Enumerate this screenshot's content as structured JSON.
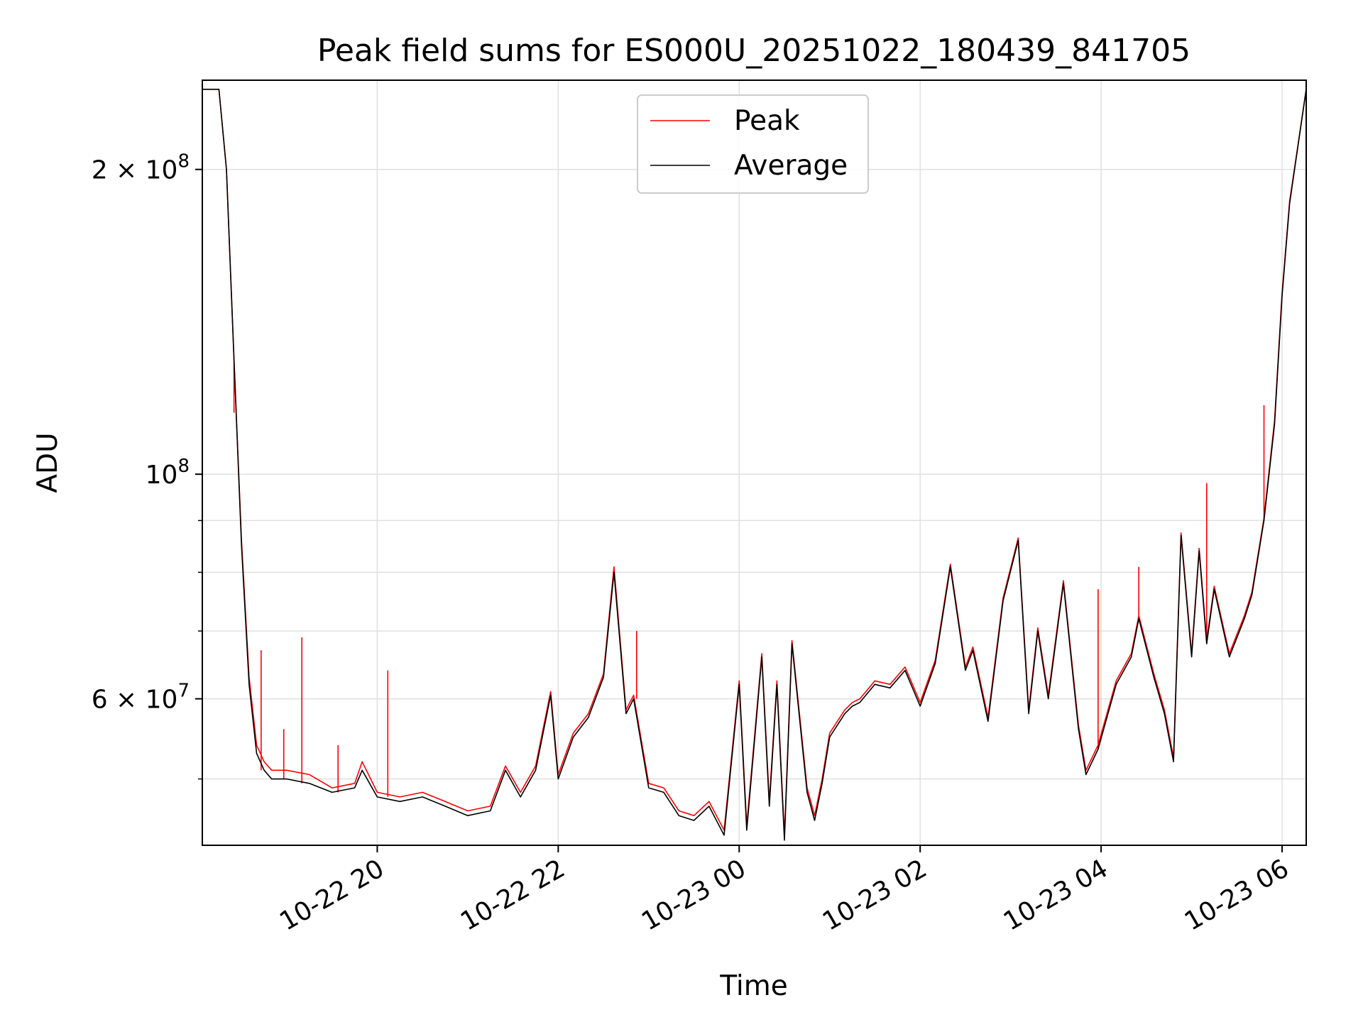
{
  "chart_data": {
    "type": "line",
    "title": "Peak field sums for ES000U_20251022_180439_841705",
    "xlabel": "Time",
    "ylabel": "ADU",
    "yscale": "log",
    "xlim": [
      "2025-10-22 18:04",
      "2025-10-23 06:16"
    ],
    "ylim": [
      43000000,
      245000000
    ],
    "x_ticks": [
      "10-22 20",
      "10-22 22",
      "10-23 00",
      "10-23 02",
      "10-23 04",
      "10-23 06"
    ],
    "x_tick_times": [
      "2025-10-22 20:00",
      "2025-10-22 22:00",
      "2025-10-23 00:00",
      "2025-10-23 02:00",
      "2025-10-23 04:00",
      "2025-10-23 06:00"
    ],
    "y_tick_labels": [
      {
        "value": 200000000,
        "mantissa": "2",
        "exp": "8"
      },
      {
        "value": 100000000,
        "mantissa": "",
        "exp": "8"
      },
      {
        "value": 60000000,
        "mantissa": "6",
        "exp": "7"
      }
    ],
    "y_minor_ticks": [
      50000000,
      70000000,
      80000000,
      90000000
    ],
    "grid": true,
    "legend": "upper center",
    "colors": {
      "peak": "#ff0000",
      "average": "#000000",
      "grid": "#e0e0e0"
    },
    "series": [
      {
        "name": "Average",
        "color": "#000000",
        "x": [
          "2025-10-22 18:04",
          "2025-10-22 18:15",
          "2025-10-22 18:20",
          "2025-10-22 18:25",
          "2025-10-22 18:30",
          "2025-10-22 18:35",
          "2025-10-22 18:40",
          "2025-10-22 18:45",
          "2025-10-22 18:50",
          "2025-10-22 19:00",
          "2025-10-22 19:15",
          "2025-10-22 19:30",
          "2025-10-22 19:45",
          "2025-10-22 19:50",
          "2025-10-22 20:00",
          "2025-10-22 20:15",
          "2025-10-22 20:30",
          "2025-10-22 20:45",
          "2025-10-22 21:00",
          "2025-10-22 21:15",
          "2025-10-22 21:25",
          "2025-10-22 21:35",
          "2025-10-22 21:45",
          "2025-10-22 21:55",
          "2025-10-22 22:00",
          "2025-10-22 22:10",
          "2025-10-22 22:20",
          "2025-10-22 22:30",
          "2025-10-22 22:37",
          "2025-10-22 22:45",
          "2025-10-22 22:50",
          "2025-10-22 23:00",
          "2025-10-22 23:10",
          "2025-10-22 23:20",
          "2025-10-22 23:30",
          "2025-10-22 23:40",
          "2025-10-22 23:50",
          "2025-10-23 00:00",
          "2025-10-23 00:05",
          "2025-10-23 00:15",
          "2025-10-23 00:20",
          "2025-10-23 00:25",
          "2025-10-23 00:30",
          "2025-10-23 00:35",
          "2025-10-23 00:45",
          "2025-10-23 00:50",
          "2025-10-23 00:55",
          "2025-10-23 01:00",
          "2025-10-23 01:10",
          "2025-10-23 01:15",
          "2025-10-23 01:20",
          "2025-10-23 01:30",
          "2025-10-23 01:40",
          "2025-10-23 01:50",
          "2025-10-23 02:00",
          "2025-10-23 02:10",
          "2025-10-23 02:20",
          "2025-10-23 02:30",
          "2025-10-23 02:35",
          "2025-10-23 02:45",
          "2025-10-23 02:55",
          "2025-10-23 03:05",
          "2025-10-23 03:12",
          "2025-10-23 03:18",
          "2025-10-23 03:25",
          "2025-10-23 03:35",
          "2025-10-23 03:45",
          "2025-10-23 03:50",
          "2025-10-23 03:58",
          "2025-10-23 04:10",
          "2025-10-23 04:20",
          "2025-10-23 04:25",
          "2025-10-23 04:35",
          "2025-10-23 04:42",
          "2025-10-23 04:48",
          "2025-10-23 04:53",
          "2025-10-23 05:00",
          "2025-10-23 05:05",
          "2025-10-23 05:10",
          "2025-10-23 05:15",
          "2025-10-23 05:25",
          "2025-10-23 05:35",
          "2025-10-23 05:40",
          "2025-10-23 05:48",
          "2025-10-23 05:55",
          "2025-10-23 06:00",
          "2025-10-23 06:05",
          "2025-10-23 06:16"
        ],
        "y": [
          240000000,
          240000000,
          200000000,
          130000000,
          85000000,
          62000000,
          53000000,
          51000000,
          50000000,
          50000000,
          49500000,
          48500000,
          49000000,
          51000000,
          48000000,
          47500000,
          48000000,
          47000000,
          46000000,
          46500000,
          51000000,
          48000000,
          51000000,
          60500000,
          50000000,
          55000000,
          57500000,
          63000000,
          80000000,
          58000000,
          60000000,
          49000000,
          48500000,
          46000000,
          45500000,
          47000000,
          44000000,
          62000000,
          44500000,
          66000000,
          47000000,
          62000000,
          43500000,
          68000000,
          48500000,
          45500000,
          49500000,
          55000000,
          58000000,
          59000000,
          59500000,
          62000000,
          61500000,
          64000000,
          59000000,
          65000000,
          81000000,
          64000000,
          67000000,
          57000000,
          75000000,
          86000000,
          58000000,
          70000000,
          60000000,
          78000000,
          56000000,
          50500000,
          53500000,
          62000000,
          66000000,
          72000000,
          63000000,
          58000000,
          52000000,
          87000000,
          66000000,
          84000000,
          68000000,
          77000000,
          66000000,
          72000000,
          76000000,
          90000000,
          112000000,
          150000000,
          185000000,
          240000000
        ]
      },
      {
        "name": "Peak",
        "color": "#ff0000",
        "x": [
          "2025-10-22 18:04",
          "2025-10-22 18:15",
          "2025-10-22 18:20",
          "2025-10-22 18:25",
          "2025-10-22 18:30",
          "2025-10-22 18:35",
          "2025-10-22 18:40",
          "2025-10-22 18:45",
          "2025-10-22 18:50",
          "2025-10-22 19:00",
          "2025-10-22 19:15",
          "2025-10-22 19:30",
          "2025-10-22 19:45",
          "2025-10-22 19:50",
          "2025-10-22 20:00",
          "2025-10-22 20:15",
          "2025-10-22 20:30",
          "2025-10-22 20:45",
          "2025-10-22 21:00",
          "2025-10-22 21:15",
          "2025-10-22 21:25",
          "2025-10-22 21:35",
          "2025-10-22 21:45",
          "2025-10-22 21:55",
          "2025-10-22 22:00",
          "2025-10-22 22:10",
          "2025-10-22 22:20",
          "2025-10-22 22:30",
          "2025-10-22 22:37",
          "2025-10-22 22:45",
          "2025-10-22 22:50",
          "2025-10-22 23:00",
          "2025-10-22 23:10",
          "2025-10-22 23:20",
          "2025-10-22 23:30",
          "2025-10-22 23:40",
          "2025-10-22 23:50",
          "2025-10-23 00:00",
          "2025-10-23 00:05",
          "2025-10-23 00:15",
          "2025-10-23 00:20",
          "2025-10-23 00:25",
          "2025-10-23 00:30",
          "2025-10-23 00:35",
          "2025-10-23 00:45",
          "2025-10-23 00:50",
          "2025-10-23 00:55",
          "2025-10-23 01:00",
          "2025-10-23 01:10",
          "2025-10-23 01:15",
          "2025-10-23 01:20",
          "2025-10-23 01:30",
          "2025-10-23 01:40",
          "2025-10-23 01:50",
          "2025-10-23 02:00",
          "2025-10-23 02:10",
          "2025-10-23 02:20",
          "2025-10-23 02:30",
          "2025-10-23 02:35",
          "2025-10-23 02:45",
          "2025-10-23 02:55",
          "2025-10-23 03:05",
          "2025-10-23 03:12",
          "2025-10-23 03:18",
          "2025-10-23 03:25",
          "2025-10-23 03:35",
          "2025-10-23 03:45",
          "2025-10-23 03:50",
          "2025-10-23 03:58",
          "2025-10-23 04:10",
          "2025-10-23 04:20",
          "2025-10-23 04:25",
          "2025-10-23 04:35",
          "2025-10-23 04:42",
          "2025-10-23 04:48",
          "2025-10-23 04:53",
          "2025-10-23 05:00",
          "2025-10-23 05:05",
          "2025-10-23 05:10",
          "2025-10-23 05:15",
          "2025-10-23 05:25",
          "2025-10-23 05:35",
          "2025-10-23 05:40",
          "2025-10-23 05:48",
          "2025-10-23 05:55",
          "2025-10-23 06:00",
          "2025-10-23 06:05",
          "2025-10-23 06:16"
        ],
        "y": [
          240000000,
          240000000,
          200000000,
          130000000,
          86000000,
          63000000,
          54000000,
          52000000,
          51000000,
          51000000,
          50500000,
          49000000,
          49500000,
          52000000,
          48500000,
          48000000,
          48500000,
          47500000,
          46500000,
          47000000,
          51500000,
          48500000,
          51500000,
          61000000,
          50500000,
          55500000,
          58000000,
          63500000,
          81000000,
          58500000,
          60500000,
          49500000,
          49000000,
          46500000,
          46000000,
          47500000,
          44500000,
          62500000,
          45000000,
          66500000,
          47500000,
          62500000,
          44000000,
          68500000,
          49000000,
          46000000,
          50000000,
          55500000,
          58500000,
          59500000,
          60000000,
          62500000,
          62000000,
          64500000,
          59500000,
          65500000,
          81500000,
          64500000,
          67500000,
          57500000,
          75500000,
          86500000,
          58500000,
          70500000,
          60500000,
          78500000,
          56500000,
          51000000,
          54000000,
          62500000,
          66500000,
          72500000,
          63500000,
          58500000,
          52500000,
          87500000,
          66500000,
          84500000,
          68500000,
          77500000,
          66500000,
          72500000,
          76500000,
          90500000,
          113000000,
          151000000,
          186000000,
          240000000
        ]
      }
    ],
    "peak_spikes": [
      {
        "x": "2025-10-22 18:25",
        "y": 115000000
      },
      {
        "x": "2025-10-22 18:43",
        "y": 67000000
      },
      {
        "x": "2025-10-22 18:58",
        "y": 56000000
      },
      {
        "x": "2025-10-22 19:10",
        "y": 69000000
      },
      {
        "x": "2025-10-22 19:34",
        "y": 54000000
      },
      {
        "x": "2025-10-22 20:07",
        "y": 64000000
      },
      {
        "x": "2025-10-22 22:52",
        "y": 70000000
      },
      {
        "x": "2025-10-23 03:58",
        "y": 77000000
      },
      {
        "x": "2025-10-23 04:25",
        "y": 81000000
      },
      {
        "x": "2025-10-23 05:10",
        "y": 98000000
      },
      {
        "x": "2025-10-23 05:48",
        "y": 117000000
      }
    ]
  }
}
